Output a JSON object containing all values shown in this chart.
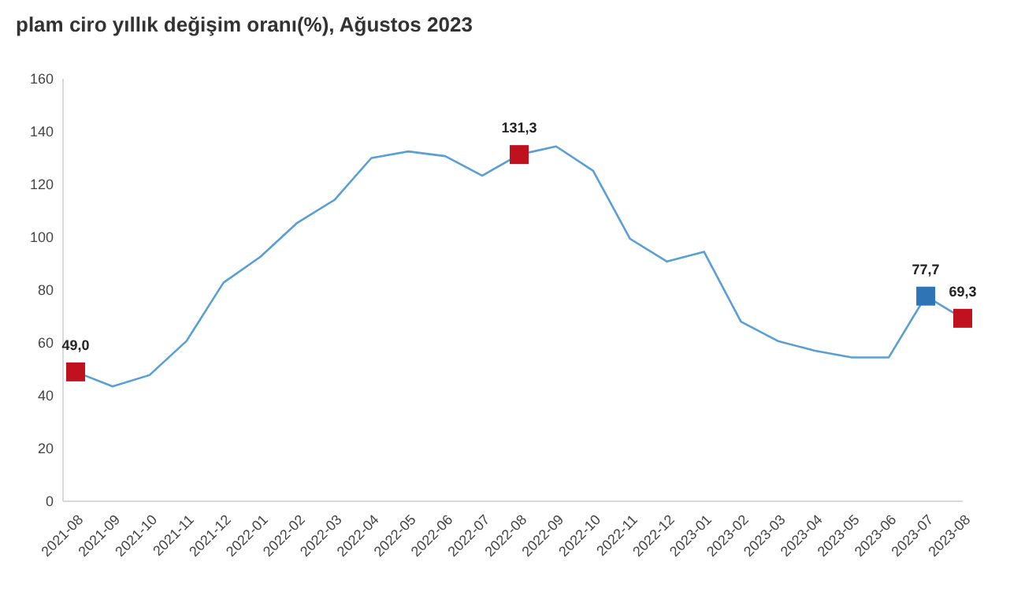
{
  "chart_data": {
    "type": "line",
    "title": "plam ciro yıllık değişim oranı(%), Ağustos 2023",
    "categories": [
      "2021-08",
      "2021-09",
      "2021-10",
      "2021-11",
      "2021-12",
      "2022-01",
      "2022-02",
      "2022-03",
      "2022-04",
      "2022-05",
      "2022-06",
      "2022-07",
      "2022-08",
      "2022-09",
      "2022-10",
      "2022-11",
      "2022-12",
      "2023-01",
      "2023-02",
      "2023-03",
      "2023-04",
      "2023-05",
      "2023-06",
      "2023-07",
      "2023-08"
    ],
    "series": [
      {
        "color": "#5a9fd4",
        "marker": "none",
        "values": [
          49.0,
          43.5,
          47.8,
          60.7,
          82.8,
          92.6,
          105.5,
          114.1,
          130.0,
          132.5,
          130.7,
          123.3,
          131.3,
          134.4,
          125.2,
          99.4,
          90.8,
          94.5,
          68.0,
          60.7,
          57.0,
          54.5,
          54.5,
          77.7,
          69.3
        ]
      },
      {
        "type": "scatter",
        "marker": "square",
        "values": [
          49.0,
          null,
          null,
          null,
          null,
          null,
          null,
          null,
          null,
          null,
          null,
          null,
          131.3,
          null,
          null,
          null,
          null,
          null,
          null,
          null,
          null,
          null,
          null,
          77.7,
          69.3
        ],
        "colors": [
          "#c0111f",
          null,
          null,
          null,
          null,
          null,
          null,
          null,
          null,
          null,
          null,
          null,
          "#c0111f",
          null,
          null,
          null,
          null,
          null,
          null,
          null,
          null,
          null,
          null,
          "#2e75b6",
          "#c0111f"
        ],
        "value_labels": [
          "49,0",
          null,
          null,
          null,
          null,
          null,
          null,
          null,
          null,
          null,
          null,
          null,
          "131,3",
          null,
          null,
          null,
          null,
          null,
          null,
          null,
          null,
          null,
          null,
          "77,7",
          "69,3"
        ]
      }
    ],
    "ylim": [
      0,
      160
    ],
    "yticks": [
      0,
      20,
      40,
      60,
      80,
      100,
      120,
      140,
      160
    ],
    "grid": false
  }
}
